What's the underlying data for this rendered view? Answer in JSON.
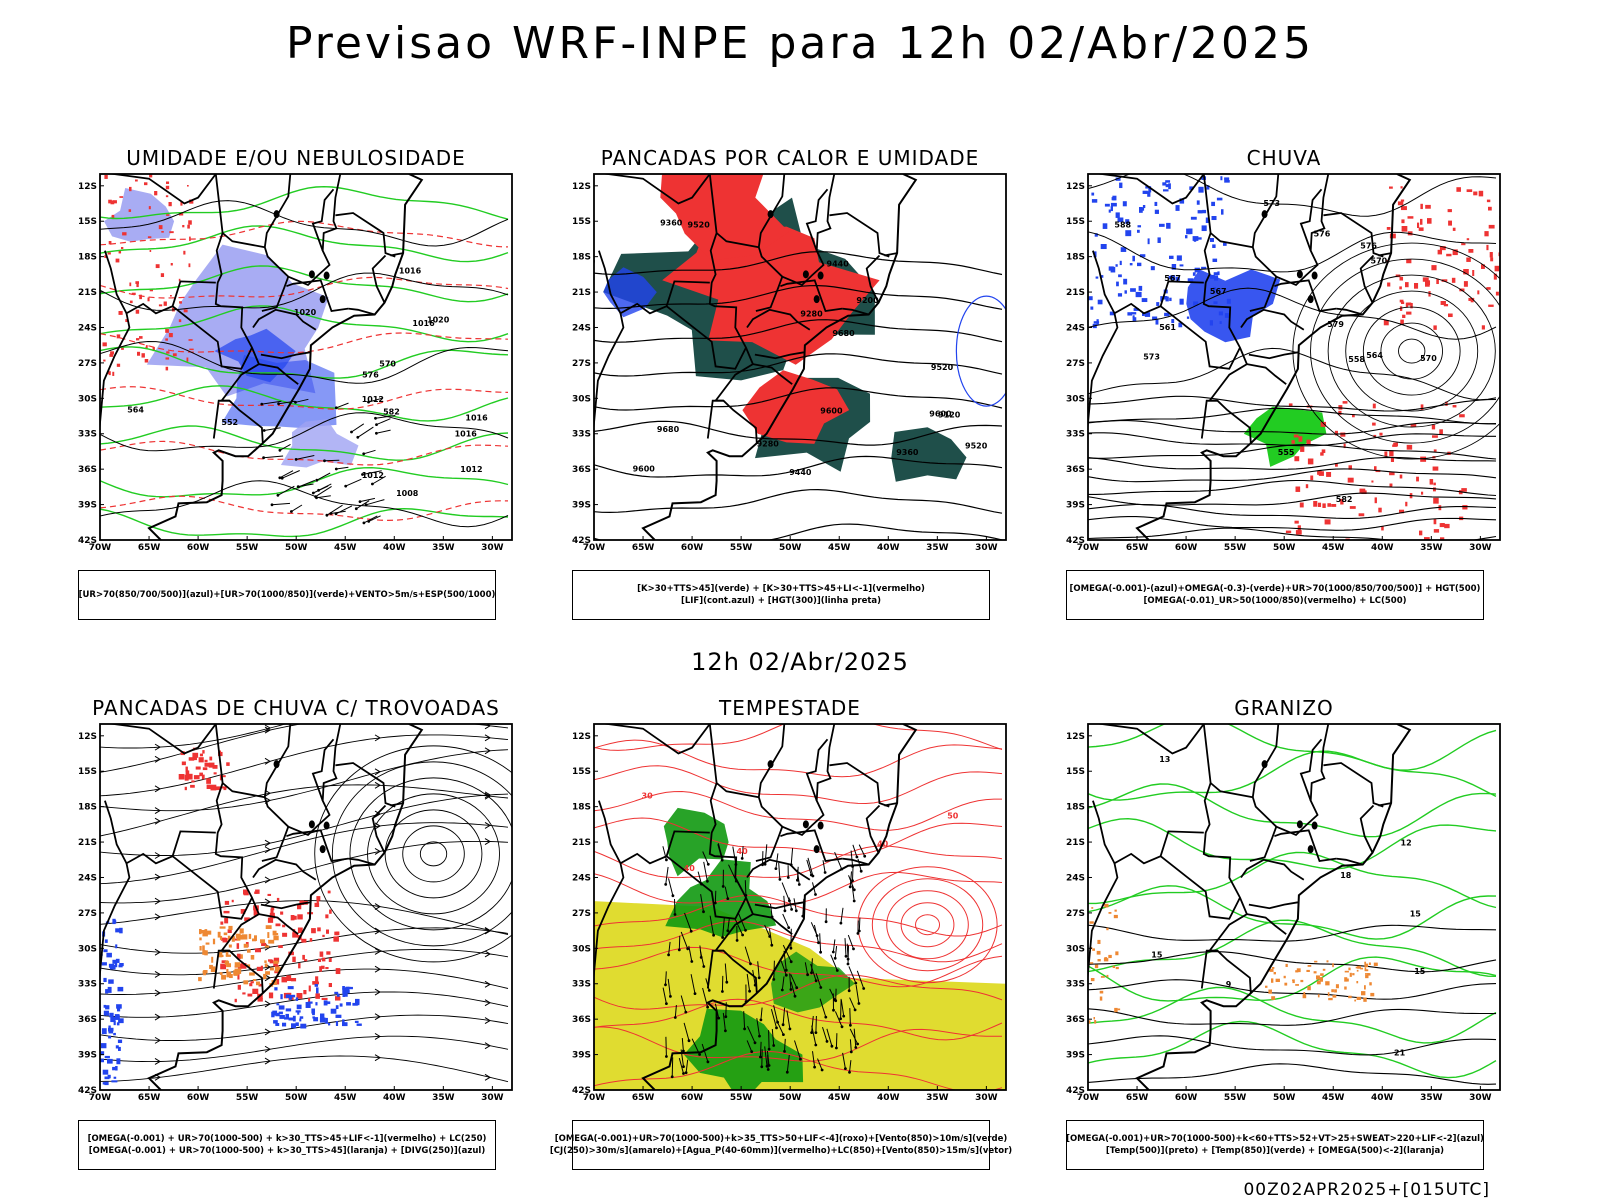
{
  "title": "Previsao WRF-INPE  para 12h 02/Abr/2025",
  "mid_title": "12h 02/Abr/2025",
  "footer": "00Z02APR2025+[015UTC]",
  "axes": {
    "lat_labels": [
      "12S",
      "15S",
      "18S",
      "21S",
      "24S",
      "27S",
      "30S",
      "33S",
      "36S",
      "39S",
      "42S"
    ],
    "lon_labels": [
      "70W",
      "65W",
      "60W",
      "55W",
      "50W",
      "45W",
      "40W",
      "35W",
      "30W"
    ]
  },
  "colors": {
    "blue": "#2244ee",
    "light_blue": "#9fa3f2",
    "green": "#22cc22",
    "red": "#ee3333",
    "dark_teal": "#1f4f4a",
    "orange": "#ee8833",
    "yellow": "#e0dc30",
    "dark_green": "#119911"
  },
  "panels": [
    {
      "id": "umidade",
      "title": "UMIDADE E/OU NEBULOSIDADE",
      "legend": [
        "[UR>70(850/700/500)](azul)+[UR>70(1000/850)](verde)+VENTO>5m/s+ESP(500/1000)"
      ],
      "contour_labels": [
        "1012",
        "1016",
        "1016",
        "1016",
        "1012",
        "1016",
        "1020",
        "1020",
        "1012",
        "1008",
        "570",
        "576",
        "564",
        "582",
        "552"
      ]
    },
    {
      "id": "pancadas_calor",
      "title": "PANCADAS POR CALOR E UMIDADE",
      "legend": [
        "[K>30+TTS>45](verde) + [K>30+TTS>45+LI<-1](vermelho)",
        "[LIF](cont.azul) + [HGT(300)](linha preta)"
      ],
      "contour_labels": [
        "9680",
        "9680",
        "9600",
        "9520",
        "9440",
        "9360",
        "9280",
        "9200",
        "9120",
        "9600",
        "9520",
        "9600",
        "9520",
        "9440",
        "9360",
        "9280"
      ]
    },
    {
      "id": "chuva",
      "title": "CHUVA",
      "legend": [
        "[OMEGA(-0.001)-(azul)+OMEGA(-0.3)-(verde)+UR>70(1000/850/700/500)] + HGT(500)",
        "[OMEGA(-0.01)_UR>50(1000/850)(vermelho) + LC(500)"
      ],
      "contour_labels": [
        "576",
        "573",
        "570",
        "567",
        "564",
        "561",
        "555",
        "558",
        "582",
        "588",
        "579",
        "576",
        "573",
        "570",
        "567"
      ]
    },
    {
      "id": "pancadas_trovoadas",
      "title": "PANCADAS DE CHUVA C/ TROVOADAS",
      "legend": [
        "[OMEGA(-0.001) + UR>70(1000-500) + k>30_TTS>45+LIF<-1](vermelho) + LC(250)",
        "[OMEGA(-0.001) + UR>70(1000-500) + k>30_TTS>45](laranja) + [DIVG(250)](azul)"
      ],
      "contour_labels": []
    },
    {
      "id": "tempestade",
      "title": "TEMPESTADE",
      "legend": [
        "[OMEGA(-0.001)+UR>70(1000-500)+k>35_TTS>50+LIF<-4](roxo)+[Vento(850)>10m/s](verde)",
        "[CJ(250)>30m/s](amarelo)+[Agua_P(40-60mm)](vermelho)+LC(850)+[Vento(850)>15m/s](vetor)"
      ],
      "contour_labels": [
        "40",
        "50",
        "40",
        "30",
        "40"
      ]
    },
    {
      "id": "granizo",
      "title": "GRANIZO",
      "legend": [
        "[OMEGA(-0.001)+UR>70(1000-500)+k<60+TTS>52+VT>25+SWEAT>220+LIF<-2](azul)",
        "[Temp(500)](preto) + [Temp(850)](verde) + [OMEGA(500)<-2](laranja)"
      ],
      "contour_labels": [
        "13",
        "15",
        "15",
        "18",
        "21",
        "9",
        "12",
        "15"
      ]
    }
  ]
}
